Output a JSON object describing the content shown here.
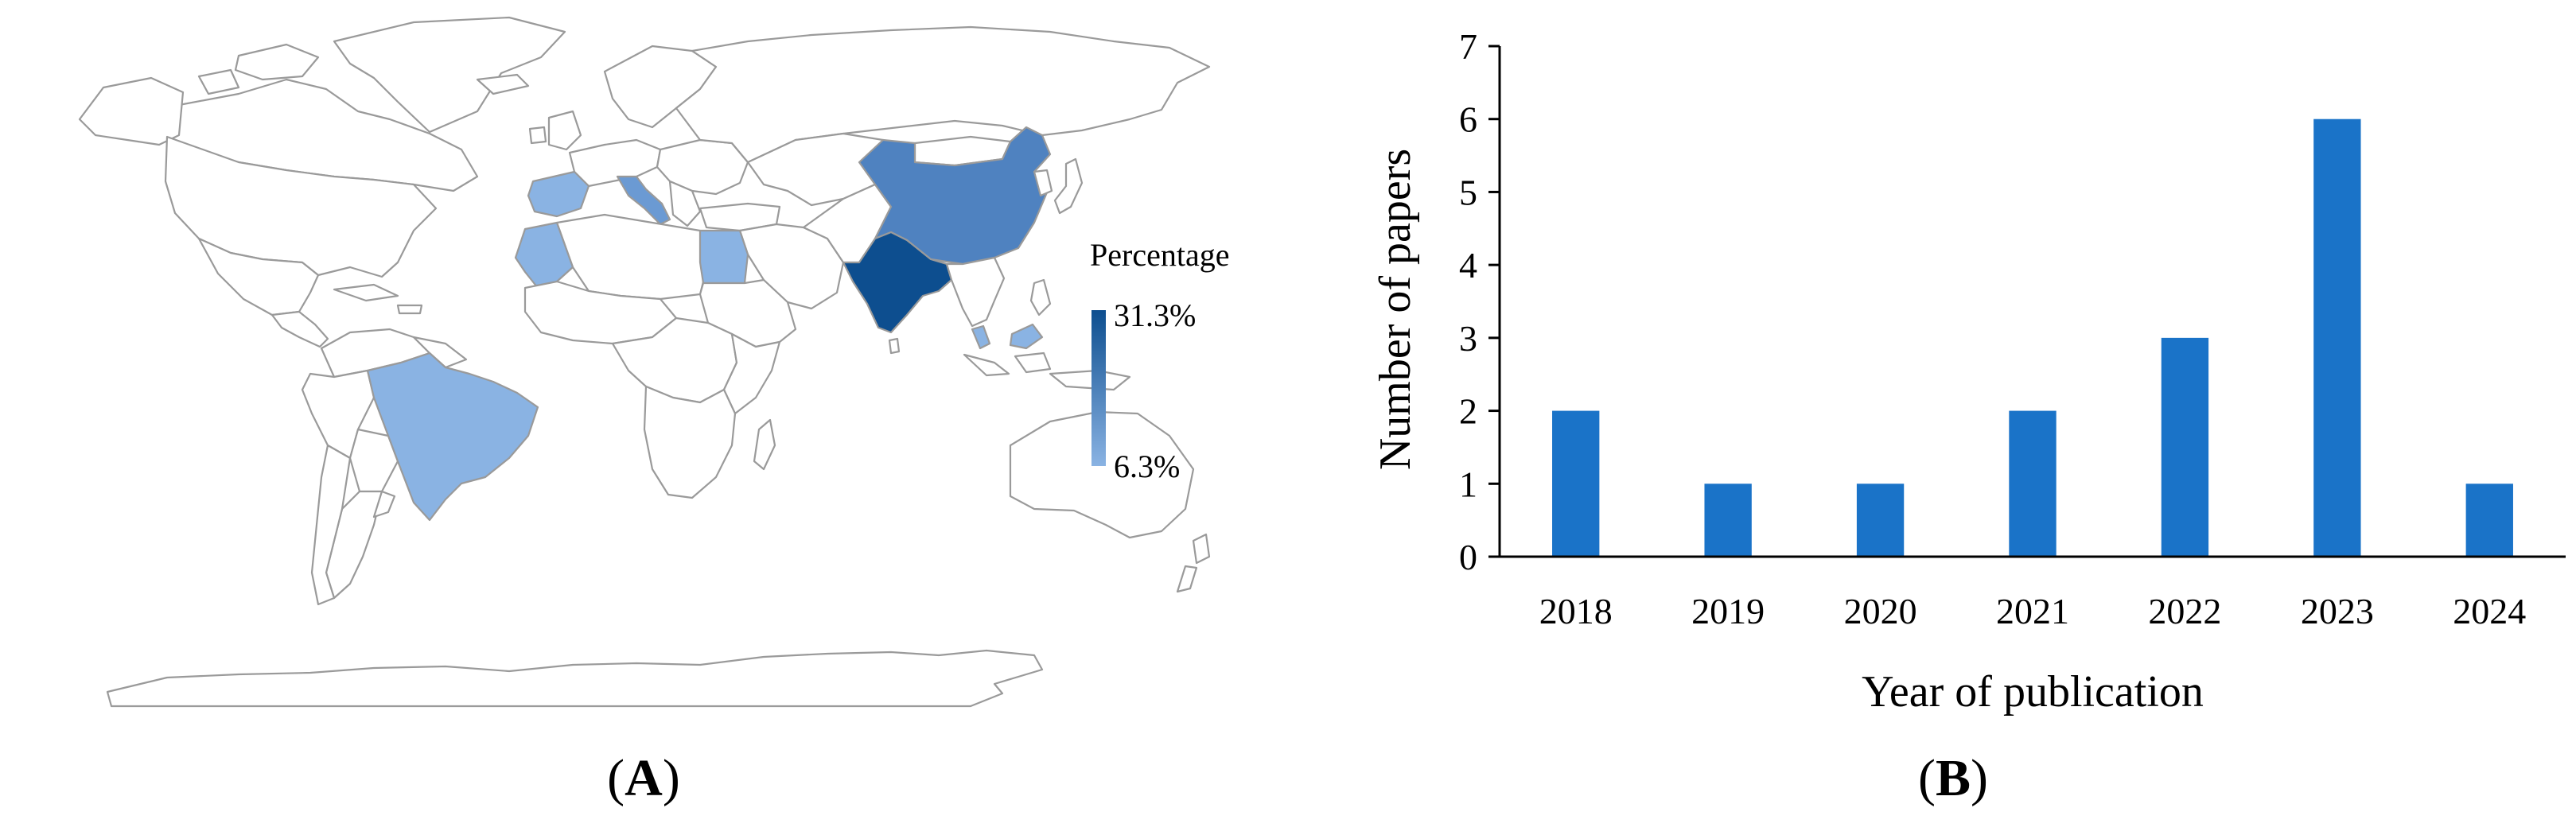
{
  "panel_a": {
    "label": "A",
    "legend": {
      "title": "Percentage",
      "max_label": "31.3%",
      "min_label": "6.3%",
      "max_color": "#0d4e8f",
      "min_color": "#8ab3e3"
    },
    "highlighted_countries": [
      {
        "name": "India",
        "color": "#0d4e8f"
      },
      {
        "name": "China",
        "color": "#4f82c0"
      },
      {
        "name": "Brazil",
        "color": "#8ab3e3"
      },
      {
        "name": "Morocco",
        "color": "#8ab3e3"
      },
      {
        "name": "Egypt",
        "color": "#8ab3e3"
      },
      {
        "name": "Italy",
        "color": "#6b9ad3"
      },
      {
        "name": "Spain",
        "color": "#8ab3e3"
      },
      {
        "name": "Malaysia",
        "color": "#8ab3e3"
      }
    ],
    "neutral_fill": "#ffffff",
    "border_color": "#9a9a9a"
  },
  "panel_b": {
    "label": "B",
    "chart_data": {
      "type": "bar",
      "categories": [
        "2018",
        "2019",
        "2020",
        "2021",
        "2022",
        "2023",
        "2024"
      ],
      "values": [
        2,
        1,
        1,
        2,
        3,
        6,
        1
      ],
      "title": "",
      "xlabel": "Year of publication",
      "ylabel": "Number of papers",
      "ylim": [
        0,
        7
      ],
      "yticks": [
        "0",
        "1",
        "2",
        "3",
        "4",
        "5",
        "6",
        "7"
      ],
      "grid": false,
      "legend": "none",
      "bar_color": "#1a73c8"
    }
  }
}
